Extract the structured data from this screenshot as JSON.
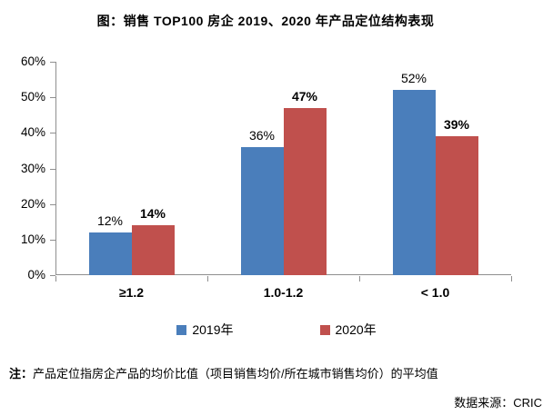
{
  "title": "图：销售 TOP100 房企 2019、2020 年产品定位结构表现",
  "note_prefix": "注：",
  "note": "产品定位指房企产品的均价比值（项目销售均价/所在城市销售均价）的平均值",
  "source": "数据来源：CRIC",
  "colors": {
    "series_2019": "#4A7EBB",
    "series_2020": "#C0504D",
    "axis": "#8f8f8f",
    "text": "#000000"
  },
  "chart_data": {
    "type": "bar",
    "categories": [
      "≥1.2",
      "1.0-1.2",
      "< 1.0"
    ],
    "series": [
      {
        "name": "2019年",
        "color_key": "series_2019",
        "values": [
          12,
          36,
          52
        ],
        "bold_labels": false
      },
      {
        "name": "2020年",
        "color_key": "series_2020",
        "values": [
          14,
          47,
          39
        ],
        "bold_labels": true
      }
    ],
    "y_ticks": [
      "60%",
      "50%",
      "40%",
      "30%",
      "20%",
      "10%",
      "0%"
    ],
    "ylim": [
      0,
      60
    ],
    "y_tick_step": 10,
    "value_suffix": "%",
    "grid": false,
    "legend_position": "bottom"
  }
}
